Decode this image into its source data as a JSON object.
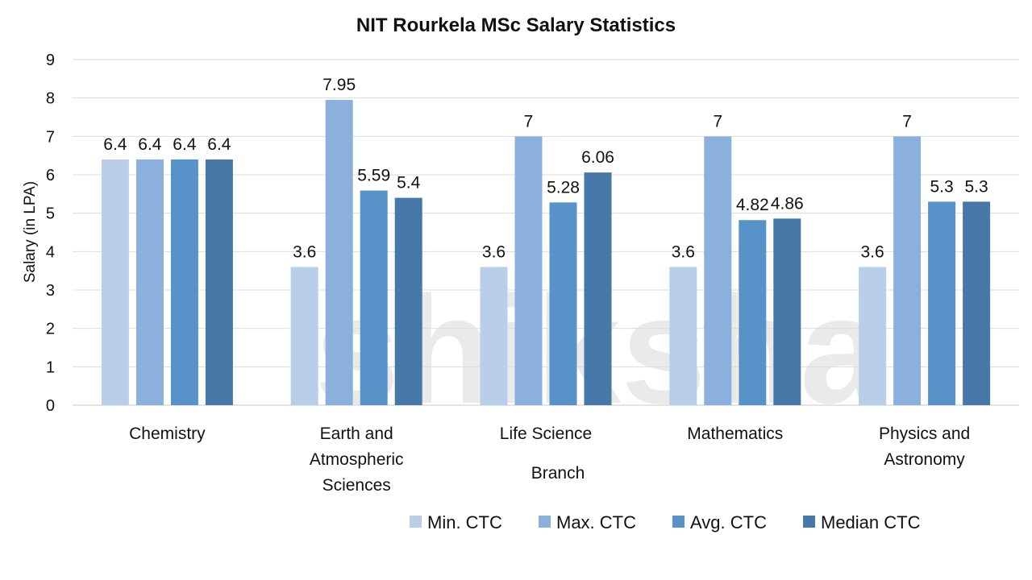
{
  "chart_data": {
    "type": "bar",
    "title": "NIT Rourkela MSc Salary Statistics",
    "xlabel": "Branch",
    "ylabel": "Salary (in LPA)",
    "ylim": [
      0,
      9
    ],
    "yticks": [
      0,
      1,
      2,
      3,
      4,
      5,
      6,
      7,
      8,
      9
    ],
    "grid": true,
    "legend_position": "bottom",
    "categories": [
      [
        "Chemistry"
      ],
      [
        "Earth and",
        "Atmospheric",
        "Sciences"
      ],
      [
        "Life Science"
      ],
      [
        "Mathematics"
      ],
      [
        "Physics and",
        "Astronomy"
      ]
    ],
    "series": [
      {
        "name": "Min. CTC",
        "color": "#b9cfe9",
        "values": [
          6.4,
          3.6,
          3.6,
          3.6,
          3.6
        ]
      },
      {
        "name": "Max. CTC",
        "color": "#8bb0dc",
        "values": [
          6.4,
          7.95,
          7,
          7,
          7
        ]
      },
      {
        "name": "Avg. CTC",
        "color": "#5793c9",
        "values": [
          6.4,
          5.59,
          5.28,
          4.82,
          5.3
        ]
      },
      {
        "name": "Median CTC",
        "color": "#4678a8",
        "values": [
          6.4,
          5.4,
          6.06,
          4.86,
          5.3
        ]
      }
    ],
    "watermark": "shiksha"
  }
}
